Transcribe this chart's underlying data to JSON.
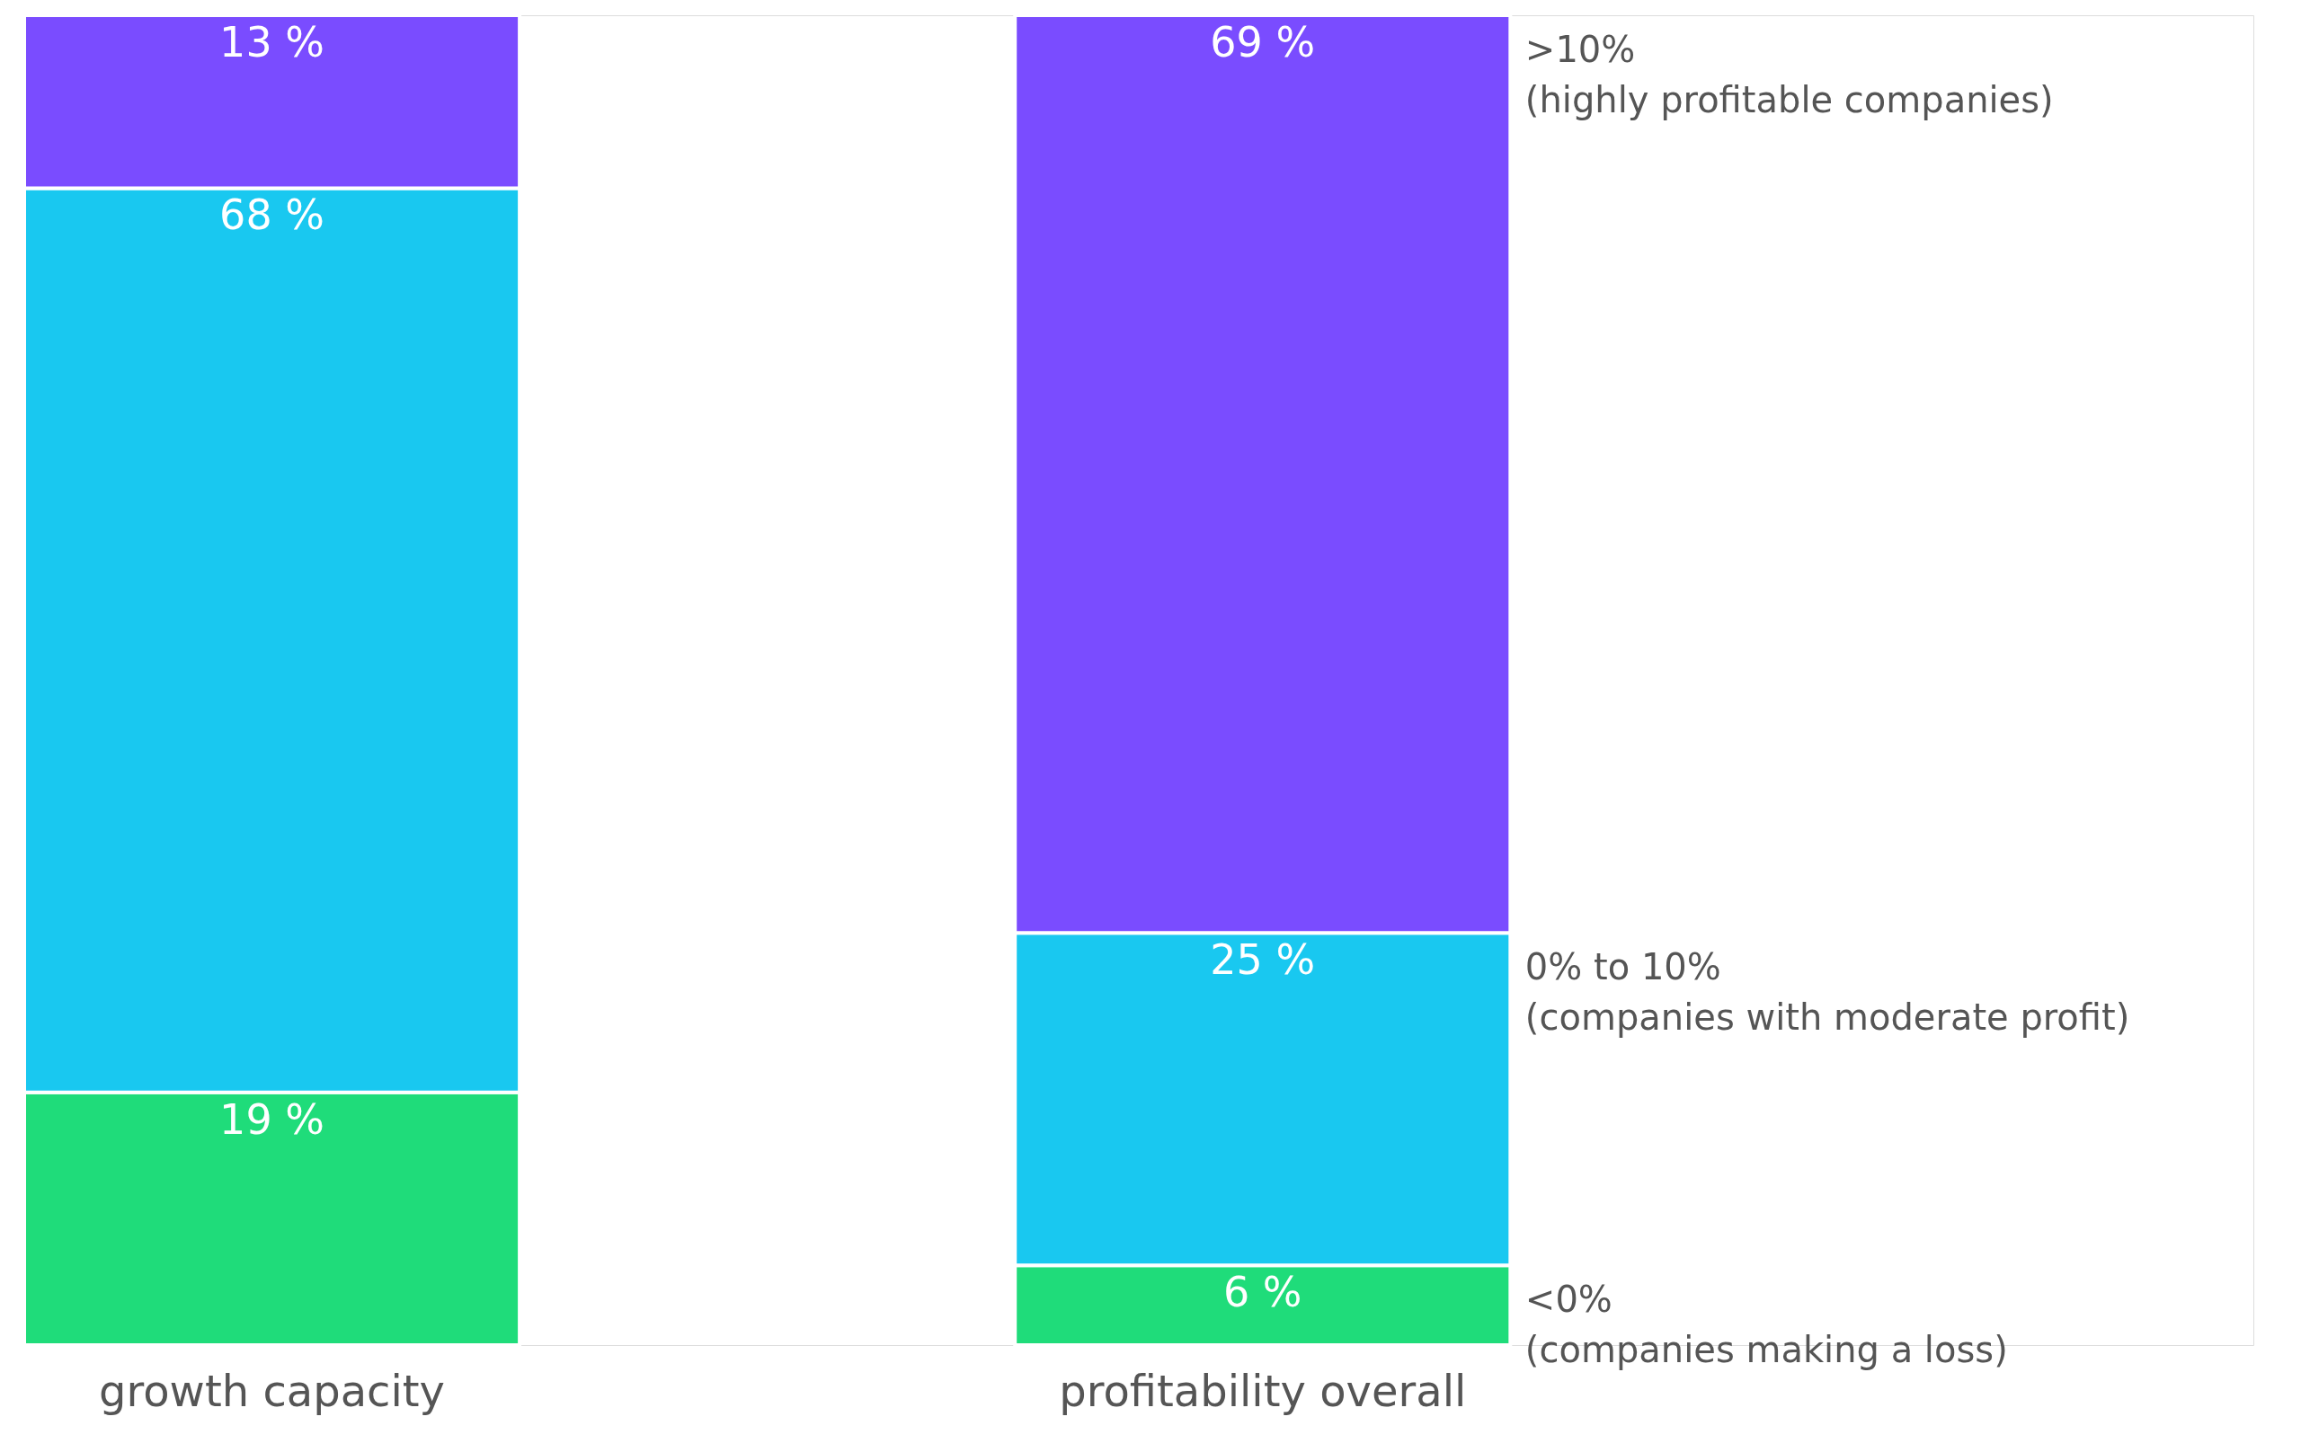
{
  "chart_data": {
    "type": "bar",
    "stacked": true,
    "categories": [
      "growth capacity",
      "profitability overall"
    ],
    "series": [
      {
        "name": "<0%\n(companies making a loss)",
        "color": "#1fdc7a",
        "values": [
          19,
          6
        ],
        "value_labels": [
          "19 %",
          "6 %"
        ]
      },
      {
        "name": "0% to 10%\n(companies with moderate profit)",
        "color": "#19c8f0",
        "values": [
          68,
          25
        ],
        "value_labels": [
          "68 %",
          "25 %"
        ]
      },
      {
        "name": ">10%\n(highly profitable companies)",
        "color": "#7a4cff",
        "values": [
          13,
          69
        ],
        "value_labels": [
          "13 %",
          "69 %"
        ]
      }
    ]
  }
}
